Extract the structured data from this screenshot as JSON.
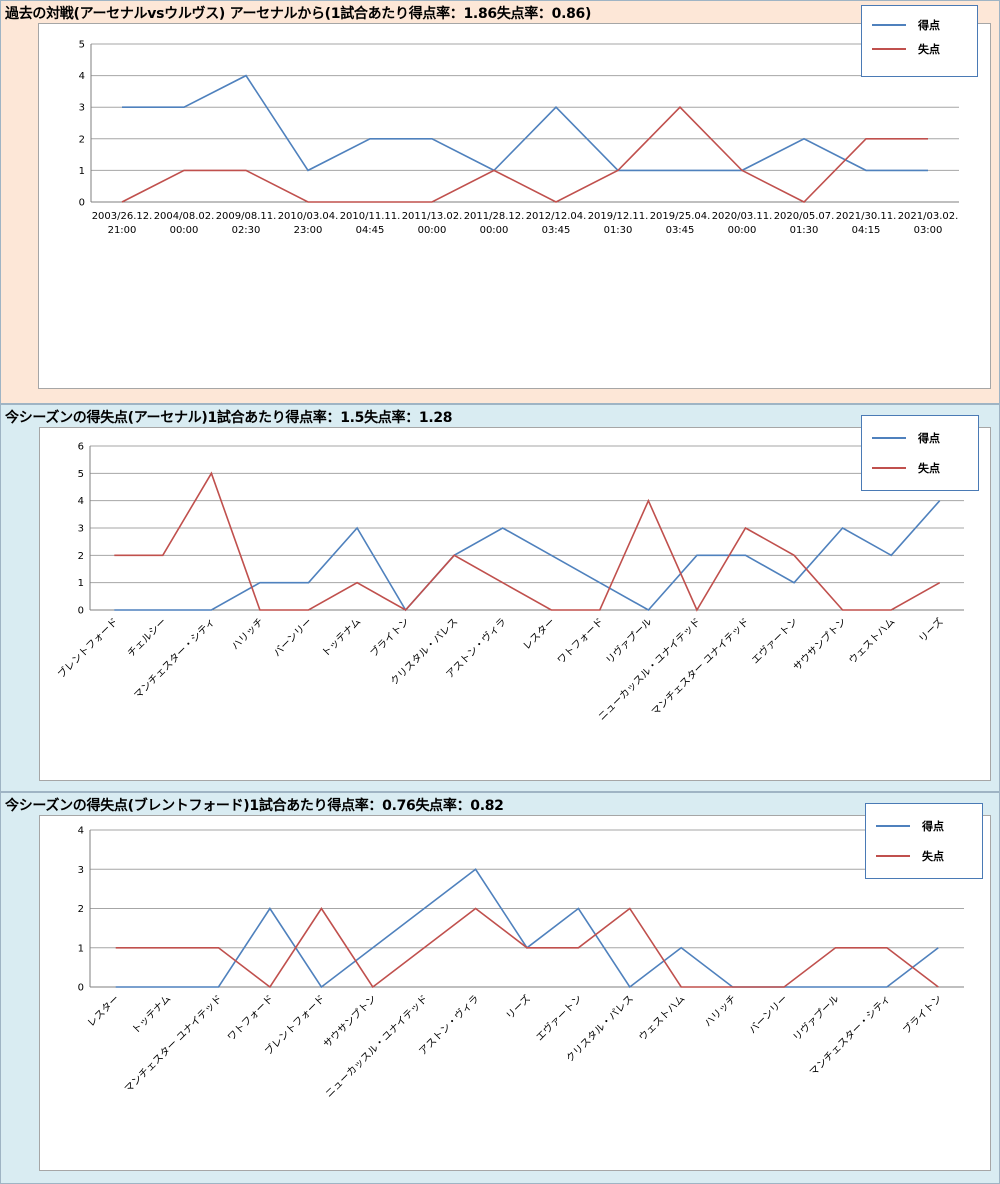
{
  "colors": {
    "scored": "#4f81bd",
    "conceded": "#c0504d",
    "grid": "#a6a6a6",
    "axis": "#7f7f7f"
  },
  "sections": [
    {
      "title": "過去の対戦(アーセナルvsウルヴス) アーセナルから(1試合あたり得点率：1.86失点率：0.86)"
    },
    {
      "title": "今シーズンの得失点(アーセナル)1試合あたり得点率：1.5失点率：1.28"
    },
    {
      "title": "今シーズンの得失点(ブレントフォード)1試合あたり得点率：0.76失点率：0.82"
    }
  ],
  "chart_data": [
    {
      "type": "line",
      "categories": [
        "2003/26.12.\n21:00",
        "2004/08.02.\n00:00",
        "2009/08.11.\n02:30",
        "2010/03.04.\n23:00",
        "2010/11.11.\n04:45",
        "2011/13.02.\n00:00",
        "2011/28.12.\n00:00",
        "2012/12.04.\n03:45",
        "2019/12.11.\n01:30",
        "2019/25.04.\n03:45",
        "2020/03.11.\n00:00",
        "2020/05.07.\n01:30",
        "2021/30.11.\n04:15",
        "2021/03.02.\n03:00"
      ],
      "series": [
        {
          "name": "得点",
          "values": [
            3,
            3,
            4,
            1,
            2,
            2,
            1,
            3,
            1,
            1,
            1,
            2,
            1,
            1
          ]
        },
        {
          "name": "失点",
          "values": [
            0,
            1,
            1,
            0,
            0,
            0,
            1,
            0,
            1,
            3,
            1,
            0,
            2,
            2
          ]
        }
      ],
      "ylim": [
        0,
        5
      ],
      "yticks": [
        0,
        1,
        2,
        3,
        4,
        5
      ],
      "grid": true,
      "legend": "top-right"
    },
    {
      "type": "line",
      "categories": [
        "ブレントフォード",
        "チェルシー",
        "マンチェスター・シティ",
        "ハリッチ",
        "バーンリー",
        "トッテナム",
        "ブライトン",
        "クリスタル・パレス",
        "アストン・ヴィラ",
        "レスター",
        "ワトフォード",
        "リヴァプール",
        "ニューカッスル・ユナイテッド",
        "マンチェスター ユナイテッド",
        "エヴァートン",
        "サウサンプトン",
        "ウェストハム",
        "リーズ"
      ],
      "series": [
        {
          "name": "得点",
          "values": [
            0,
            0,
            0,
            1,
            1,
            3,
            0,
            2,
            3,
            2,
            1,
            0,
            2,
            2,
            1,
            3,
            2,
            4
          ]
        },
        {
          "name": "失点",
          "values": [
            2,
            2,
            5,
            0,
            0,
            1,
            0,
            2,
            1,
            0,
            0,
            4,
            0,
            3,
            2,
            0,
            0,
            1
          ]
        }
      ],
      "ylim": [
        0,
        6
      ],
      "yticks": [
        0,
        1,
        2,
        3,
        4,
        5,
        6
      ],
      "grid": true,
      "legend": "top-right"
    },
    {
      "type": "line",
      "categories": [
        "レスター",
        "トッテナム",
        "マンチェスター ユナイテッド",
        "ワトフォード",
        "ブレントフォード",
        "サウサンプトン",
        "ニューカッスル・ユナイテッド",
        "アストン・ヴィラ",
        "リーズ",
        "エヴァートン",
        "クリスタル・パレス",
        "ウェストハム",
        "ハリッチ",
        "バーンリー",
        "リヴァプール",
        "マンチェスター・シティ",
        "ブライトン"
      ],
      "series": [
        {
          "name": "得点",
          "values": [
            0,
            0,
            0,
            2,
            0,
            1,
            2,
            3,
            1,
            2,
            0,
            1,
            0,
            0,
            0,
            0,
            1
          ]
        },
        {
          "name": "失点",
          "values": [
            1,
            1,
            1,
            0,
            2,
            0,
            1,
            2,
            1,
            1,
            2,
            0,
            0,
            0,
            1,
            1,
            0
          ]
        }
      ],
      "ylim": [
        0,
        4
      ],
      "yticks": [
        0,
        1,
        2,
        3,
        4
      ],
      "grid": true,
      "legend": "top-right"
    }
  ]
}
